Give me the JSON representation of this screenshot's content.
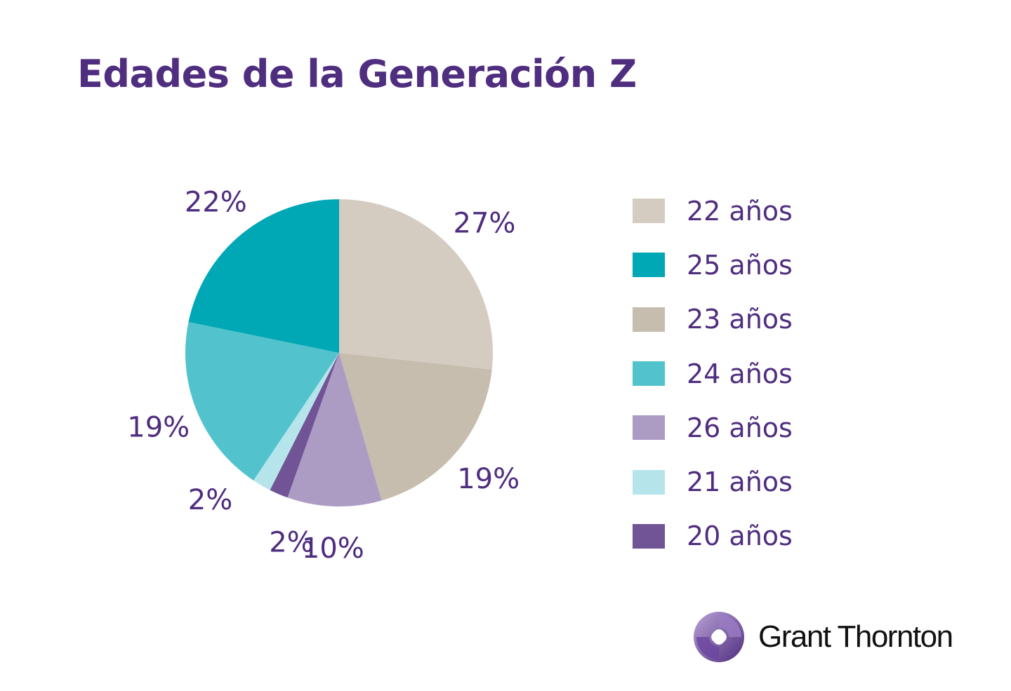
{
  "chart_data": {
    "type": "pie",
    "title": "Edades de la Generación Z",
    "slices": [
      {
        "label": "22 años",
        "value": 27,
        "display": "27%",
        "color": "#d4ccc0"
      },
      {
        "label": "23 años",
        "value": 19,
        "display": "19%",
        "color": "#c6bdae"
      },
      {
        "label": "26 años",
        "value": 10,
        "display": "10%",
        "color": "#ac9cc4"
      },
      {
        "label": "20 años",
        "value": 2,
        "display": "2%",
        "color": "#715495"
      },
      {
        "label": "21 años",
        "value": 2,
        "display": "2%",
        "color": "#b5e5ea"
      },
      {
        "label": "24 años",
        "value": 19,
        "display": "19%",
        "color": "#52c3cd"
      },
      {
        "label": "25 años",
        "value": 22,
        "display": "22%",
        "color": "#00a7b5"
      }
    ],
    "legend_order": [
      "22 años",
      "25 años",
      "23 años",
      "24 años",
      "26 años",
      "21 años",
      "20 años"
    ],
    "legend_placement": "right"
  },
  "logo": {
    "text": "Grant Thornton",
    "color": "#4f2d7f"
  }
}
